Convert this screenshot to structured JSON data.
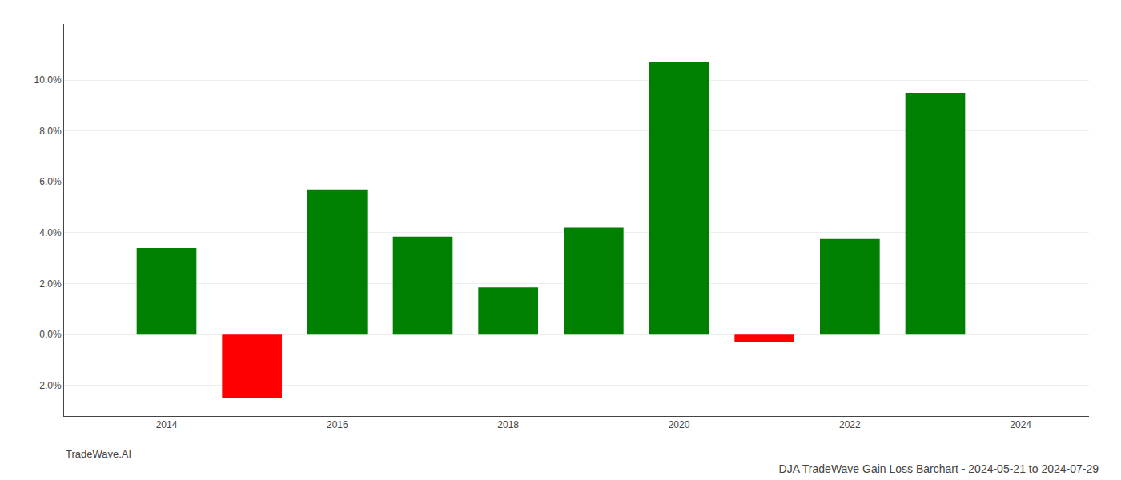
{
  "chart_data": {
    "type": "bar",
    "title": "DJA TradeWave Gain Loss Barchart - 2024-05-21 to 2024-07-29",
    "annotations": [
      "TradeWave.AI"
    ],
    "x": [
      2014,
      2015,
      2016,
      2017,
      2018,
      2019,
      2020,
      2021,
      2022,
      2023
    ],
    "values": [
      0.034,
      -0.025,
      0.057,
      0.0385,
      0.0185,
      0.042,
      0.107,
      -0.003,
      0.0375,
      0.095
    ],
    "colors": [
      "#008000",
      "#ff0000",
      "#008000",
      "#008000",
      "#008000",
      "#008000",
      "#008000",
      "#ff0000",
      "#008000",
      "#008000"
    ],
    "xlim": [
      2012.8,
      2024.8
    ],
    "xticks": [
      2014,
      2016,
      2018,
      2020,
      2022,
      2024
    ],
    "ylim": [
      -0.032,
      0.122
    ],
    "yticks": [
      {
        "value": -0.02,
        "label": "-2.0%"
      },
      {
        "value": 0.0,
        "label": "0.0%"
      },
      {
        "value": 0.02,
        "label": "2.0%"
      },
      {
        "value": 0.04,
        "label": "4.0%"
      },
      {
        "value": 0.06,
        "label": "6.0%"
      },
      {
        "value": 0.08,
        "label": "8.0%"
      },
      {
        "value": 0.1,
        "label": "10.0%"
      }
    ],
    "grid": true
  }
}
